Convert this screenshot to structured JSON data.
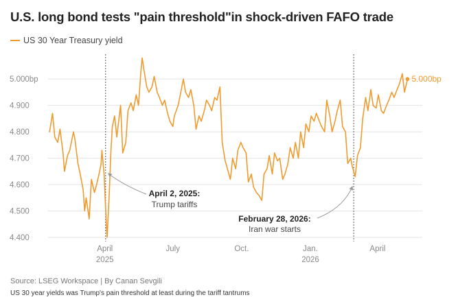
{
  "title": "U.S. long bond tests \"pain threshold\"in shock-driven FAFO trade",
  "legend_label": "US 30 Year Treasury yield",
  "source": "Source: LSEG Workspace | By Canan Sevgili",
  "caption": "US 30 year yields was Trump's pain threshold at least during the tariff tantrums",
  "colors": {
    "line": "#f09a2e",
    "grid": "#e3e3e3",
    "guide": "#555555",
    "arrow": "#999999"
  },
  "chart_data": {
    "type": "line",
    "ylim": [
      4.4,
      5.08
    ],
    "y_ticks": [
      {
        "value": 4.4,
        "label": "4.400"
      },
      {
        "value": 4.5,
        "label": "4.500"
      },
      {
        "value": 4.6,
        "label": "4.600"
      },
      {
        "value": 4.7,
        "label": "4.700"
      },
      {
        "value": 4.8,
        "label": "4.800"
      },
      {
        "value": 4.9,
        "label": "4.900"
      },
      {
        "value": 5.0,
        "label": "5.000bp"
      }
    ],
    "x_ticks": [
      {
        "date": "2025-04-01",
        "label": "April",
        "sublabel": "2025"
      },
      {
        "date": "2025-07-01",
        "label": "July",
        "sublabel": ""
      },
      {
        "date": "2025-10-01",
        "label": "Oct.",
        "sublabel": ""
      },
      {
        "date": "2026-01-01",
        "label": "Jan.",
        "sublabel": "2026"
      },
      {
        "date": "2026-04-01",
        "label": "April",
        "sublabel": ""
      }
    ],
    "end_label": "5.000bp",
    "series": [
      {
        "name": "US 30 Year Treasury yield",
        "points": [
          [
            "2025-01-17",
            4.8
          ],
          [
            "2025-01-21",
            4.87
          ],
          [
            "2025-01-24",
            4.78
          ],
          [
            "2025-01-28",
            4.76
          ],
          [
            "2025-01-31",
            4.81
          ],
          [
            "2025-02-04",
            4.72
          ],
          [
            "2025-02-06",
            4.65
          ],
          [
            "2025-02-10",
            4.71
          ],
          [
            "2025-02-13",
            4.73
          ],
          [
            "2025-02-18",
            4.8
          ],
          [
            "2025-02-20",
            4.77
          ],
          [
            "2025-02-24",
            4.68
          ],
          [
            "2025-02-27",
            4.64
          ],
          [
            "2025-03-03",
            4.58
          ],
          [
            "2025-03-05",
            4.5
          ],
          [
            "2025-03-07",
            4.55
          ],
          [
            "2025-03-11",
            4.47
          ],
          [
            "2025-03-14",
            4.62
          ],
          [
            "2025-03-18",
            4.57
          ],
          [
            "2025-03-21",
            4.6
          ],
          [
            "2025-03-25",
            4.65
          ],
          [
            "2025-03-27",
            4.68
          ],
          [
            "2025-03-28",
            4.73
          ],
          [
            "2025-03-31",
            4.64
          ],
          [
            "2025-04-02",
            4.51
          ],
          [
            "2025-04-03",
            4.45
          ],
          [
            "2025-04-04",
            4.4
          ],
          [
            "2025-04-07",
            4.57
          ],
          [
            "2025-04-09",
            4.72
          ],
          [
            "2025-04-11",
            4.82
          ],
          [
            "2025-04-14",
            4.86
          ],
          [
            "2025-04-17",
            4.78
          ],
          [
            "2025-04-22",
            4.9
          ],
          [
            "2025-04-25",
            4.72
          ],
          [
            "2025-04-29",
            4.76
          ],
          [
            "2025-05-02",
            4.88
          ],
          [
            "2025-05-06",
            4.91
          ],
          [
            "2025-05-09",
            4.88
          ],
          [
            "2025-05-13",
            4.94
          ],
          [
            "2025-05-16",
            4.9
          ],
          [
            "2025-05-19",
            5.02
          ],
          [
            "2025-05-21",
            5.08
          ],
          [
            "2025-05-23",
            5.04
          ],
          [
            "2025-05-27",
            4.97
          ],
          [
            "2025-05-30",
            4.95
          ],
          [
            "2025-06-03",
            4.97
          ],
          [
            "2025-06-06",
            5.01
          ],
          [
            "2025-06-10",
            4.95
          ],
          [
            "2025-06-13",
            4.93
          ],
          [
            "2025-06-17",
            4.9
          ],
          [
            "2025-06-20",
            4.92
          ],
          [
            "2025-06-24",
            4.87
          ],
          [
            "2025-06-27",
            4.84
          ],
          [
            "2025-07-01",
            4.82
          ],
          [
            "2025-07-03",
            4.86
          ],
          [
            "2025-07-08",
            4.9
          ],
          [
            "2025-07-11",
            4.94
          ],
          [
            "2025-07-15",
            5.0
          ],
          [
            "2025-07-18",
            4.95
          ],
          [
            "2025-07-22",
            4.93
          ],
          [
            "2025-07-25",
            4.96
          ],
          [
            "2025-07-29",
            4.9
          ],
          [
            "2025-08-01",
            4.81
          ],
          [
            "2025-08-05",
            4.86
          ],
          [
            "2025-08-08",
            4.84
          ],
          [
            "2025-08-12",
            4.88
          ],
          [
            "2025-08-15",
            4.92
          ],
          [
            "2025-08-19",
            4.9
          ],
          [
            "2025-08-22",
            4.88
          ],
          [
            "2025-08-26",
            4.93
          ],
          [
            "2025-08-29",
            4.92
          ],
          [
            "2025-09-02",
            4.97
          ],
          [
            "2025-09-05",
            4.76
          ],
          [
            "2025-09-09",
            4.69
          ],
          [
            "2025-09-12",
            4.66
          ],
          [
            "2025-09-16",
            4.62
          ],
          [
            "2025-09-19",
            4.7
          ],
          [
            "2025-09-23",
            4.66
          ],
          [
            "2025-09-26",
            4.73
          ],
          [
            "2025-09-30",
            4.76
          ],
          [
            "2025-10-03",
            4.74
          ],
          [
            "2025-10-07",
            4.72
          ],
          [
            "2025-10-10",
            4.61
          ],
          [
            "2025-10-14",
            4.64
          ],
          [
            "2025-10-17",
            4.59
          ],
          [
            "2025-10-21",
            4.57
          ],
          [
            "2025-10-24",
            4.56
          ],
          [
            "2025-10-28",
            4.54
          ],
          [
            "2025-10-31",
            4.64
          ],
          [
            "2025-11-04",
            4.66
          ],
          [
            "2025-11-07",
            4.71
          ],
          [
            "2025-11-11",
            4.64
          ],
          [
            "2025-11-14",
            4.72
          ],
          [
            "2025-11-18",
            4.69
          ],
          [
            "2025-11-21",
            4.7
          ],
          [
            "2025-11-25",
            4.62
          ],
          [
            "2025-11-28",
            4.64
          ],
          [
            "2025-12-02",
            4.68
          ],
          [
            "2025-12-05",
            4.74
          ],
          [
            "2025-12-09",
            4.7
          ],
          [
            "2025-12-12",
            4.76
          ],
          [
            "2025-12-16",
            4.7
          ],
          [
            "2025-12-19",
            4.8
          ],
          [
            "2025-12-23",
            4.74
          ],
          [
            "2025-12-26",
            4.83
          ],
          [
            "2025-12-30",
            4.8
          ],
          [
            "2026-01-02",
            4.86
          ],
          [
            "2026-01-06",
            4.84
          ],
          [
            "2026-01-09",
            4.87
          ],
          [
            "2026-01-13",
            4.84
          ],
          [
            "2026-01-16",
            4.82
          ],
          [
            "2026-01-20",
            4.8
          ],
          [
            "2026-01-23",
            4.92
          ],
          [
            "2026-01-27",
            4.86
          ],
          [
            "2026-01-30",
            4.8
          ],
          [
            "2026-02-03",
            4.84
          ],
          [
            "2026-02-06",
            4.88
          ],
          [
            "2026-02-10",
            4.92
          ],
          [
            "2026-02-13",
            4.82
          ],
          [
            "2026-02-17",
            4.8
          ],
          [
            "2026-02-20",
            4.68
          ],
          [
            "2026-02-24",
            4.7
          ],
          [
            "2026-02-26",
            4.67
          ],
          [
            "2026-03-02",
            4.63
          ],
          [
            "2026-03-05",
            4.71
          ],
          [
            "2026-03-09",
            4.74
          ],
          [
            "2026-03-12",
            4.85
          ],
          [
            "2026-03-16",
            4.93
          ],
          [
            "2026-03-19",
            4.88
          ],
          [
            "2026-03-23",
            4.96
          ],
          [
            "2026-03-26",
            4.9
          ],
          [
            "2026-03-30",
            4.89
          ],
          [
            "2026-04-02",
            4.94
          ],
          [
            "2026-04-06",
            4.88
          ],
          [
            "2026-04-09",
            4.87
          ],
          [
            "2026-04-13",
            4.9
          ],
          [
            "2026-04-16",
            4.92
          ],
          [
            "2026-04-20",
            4.95
          ],
          [
            "2026-04-23",
            4.93
          ],
          [
            "2026-04-27",
            4.96
          ],
          [
            "2026-04-30",
            4.98
          ],
          [
            "2026-05-04",
            5.02
          ],
          [
            "2026-05-07",
            4.95
          ],
          [
            "2026-05-11",
            5.0
          ]
        ]
      }
    ],
    "annotations": [
      {
        "date": "2025-04-02",
        "title": "April 2, 2025:",
        "subtitle": "Trump tariffs"
      },
      {
        "date": "2026-02-28",
        "title": "February 28, 2026:",
        "subtitle": "Iran war starts"
      }
    ]
  }
}
